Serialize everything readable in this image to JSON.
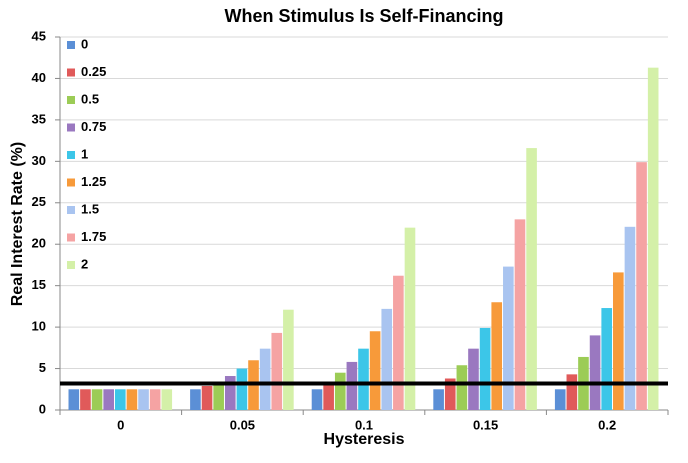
{
  "chart_data": {
    "type": "bar",
    "title": "When Stimulus Is Self-Financing",
    "x_label": "Hysteresis",
    "y_label": "Real Interest Rate (%)",
    "categories": [
      "0",
      "0.05",
      "0.1",
      "0.15",
      "0.2"
    ],
    "series": [
      {
        "name": "0",
        "color": "#5b8fd6",
        "values": [
          2.5,
          2.5,
          2.5,
          2.5,
          2.5
        ]
      },
      {
        "name": "0.25",
        "color": "#e05a5a",
        "values": [
          2.5,
          2.9,
          3.0,
          3.8,
          4.3
        ]
      },
      {
        "name": "0.5",
        "color": "#9ccc56",
        "values": [
          2.5,
          3.2,
          4.5,
          5.4,
          6.4
        ]
      },
      {
        "name": "0.75",
        "color": "#9a78c0",
        "values": [
          2.5,
          4.1,
          5.8,
          7.4,
          9.0
        ]
      },
      {
        "name": "1",
        "color": "#3cc6e8",
        "values": [
          2.5,
          5.0,
          7.4,
          9.9,
          12.3
        ]
      },
      {
        "name": "1.25",
        "color": "#f79a3a",
        "values": [
          2.5,
          6.0,
          9.5,
          13.0,
          16.6
        ]
      },
      {
        "name": "1.5",
        "color": "#a9c4f0",
        "values": [
          2.5,
          7.4,
          12.2,
          17.3,
          22.1
        ]
      },
      {
        "name": "1.75",
        "color": "#f5a3a3",
        "values": [
          2.5,
          9.3,
          16.2,
          23.0,
          29.9
        ]
      },
      {
        "name": "2",
        "color": "#d4f0a8",
        "values": [
          2.5,
          12.1,
          22.0,
          31.6,
          41.3
        ]
      }
    ],
    "reference_line": 3.2,
    "ylim": [
      0,
      45
    ],
    "yticks": [
      0,
      5,
      10,
      15,
      20,
      25,
      30,
      35,
      40,
      45
    ],
    "grid": true,
    "legend": "top-left"
  }
}
